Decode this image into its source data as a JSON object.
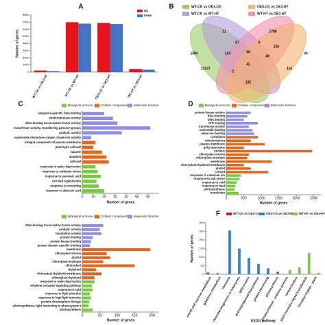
{
  "chart_data": [
    {
      "type": "bar",
      "label": "A",
      "ylabel": "Number of genes",
      "categories": [
        "WT-CK vs OE3-CK",
        "WT-CK vs WT-HT",
        "OE3-CK vs OE3-HT",
        "WT-HT vs OE3-HT"
      ],
      "series": [
        {
          "name": "Up",
          "color": "#e8141b",
          "values": [
            220,
            7000,
            6900,
            420
          ]
        },
        {
          "name": "down",
          "color": "#4472c4",
          "values": [
            120,
            6800,
            6750,
            330
          ]
        }
      ],
      "ylim": [
        0,
        8000
      ],
      "yticks": [
        0,
        1000,
        2000,
        3000,
        4000,
        5000,
        6000,
        7000,
        8000
      ]
    },
    {
      "type": "venn",
      "label": "B",
      "sets": [
        {
          "name": "WT-CK vs OE3-CK",
          "color": "#9ccc65"
        },
        {
          "name": "WT-CK vs WT-HT",
          "color": "#b39ddb"
        },
        {
          "name": "WT-HT vs OE3-HT",
          "color": "#f48fb1"
        },
        {
          "name": "OE3-CK vs OE3-HT",
          "color": "#f4b46a"
        }
      ],
      "regions": [
        1584,
        21,
        1788,
        34,
        67,
        9,
        226,
        154,
        98,
        48,
        11037,
        45,
        116,
        132,
        2
      ]
    },
    {
      "type": "barh",
      "label": "C",
      "xlabel": "Number of genes",
      "categories": [
        "sequence-specific DNA binding",
        "oxidoreductase activity",
        "DNA-binding transcription factor activity",
        "transferase activity, transferring glycosyl groups",
        "catalytic activity",
        "superoxide dismutase copper chaperone activity",
        "integral component of plasma membrane",
        "plant-type cell wall",
        "vacuole",
        "apoplast",
        "cell wall",
        "response to water deprivation",
        "response to oxidative stress",
        "response to jasmonic acid",
        "cell wall organization",
        "response to wounding",
        "response to abscisic acid"
      ],
      "series": [
        {
          "name": "Biological process",
          "color": "#7ac943",
          "values": [
            null,
            null,
            null,
            null,
            null,
            null,
            null,
            null,
            null,
            null,
            null,
            12,
            14,
            17,
            13,
            15,
            20
          ]
        },
        {
          "name": "Cellular component",
          "color": "#e8641b",
          "values": [
            null,
            null,
            null,
            null,
            null,
            null,
            12,
            10,
            18,
            22,
            24,
            null,
            null,
            null,
            null,
            null,
            null
          ]
        },
        {
          "name": "Molecular function",
          "color": "#8f8fe8",
          "values": [
            20,
            28,
            32,
            62,
            36,
            8,
            null,
            null,
            null,
            null,
            null,
            null,
            null,
            null,
            null,
            null,
            null
          ]
        }
      ],
      "xlim": [
        0,
        70
      ],
      "xticks": [
        0,
        10,
        20,
        30,
        40,
        50,
        60
      ]
    },
    {
      "type": "barh",
      "label": "D",
      "xlabel": "Number of genes",
      "categories": [
        "protein kinase activity",
        "RNA binding",
        "DNA binding",
        "ATP binding",
        "transferase activity",
        "nucleotide binding",
        "metal ion binding",
        "cytoplasm",
        "mitochondrion",
        "plasma membrane",
        "golgi apparatus",
        "nucleus",
        "chloroplast stroma",
        "chloroplast envelope",
        "membrane",
        "chloroplast thylakoid membrane",
        "plastid",
        "cytosol",
        "response to cadmium ion",
        "response to salt stress",
        "response to cold",
        "response to heat",
        "photosynthesis",
        "translation"
      ],
      "series": [
        {
          "name": "Biological process",
          "color": "#7ac943",
          "values": [
            null,
            null,
            null,
            null,
            null,
            null,
            null,
            null,
            null,
            null,
            null,
            null,
            null,
            null,
            null,
            null,
            null,
            null,
            420,
            380,
            300,
            260,
            240,
            350
          ]
        },
        {
          "name": "Cellular component",
          "color": "#e8641b",
          "values": [
            null,
            null,
            null,
            null,
            null,
            null,
            null,
            900,
            700,
            1100,
            500,
            2450,
            650,
            600,
            1300,
            500,
            700,
            1200,
            null,
            null,
            null,
            null,
            null,
            null
          ]
        },
        {
          "name": "Molecular function",
          "color": "#8f8fe8",
          "values": [
            700,
            600,
            500,
            900,
            650,
            750,
            800,
            null,
            null,
            null,
            null,
            null,
            null,
            null,
            null,
            null,
            null,
            null,
            null,
            null,
            null,
            null,
            null,
            null
          ]
        }
      ],
      "xlim": [
        0,
        2700
      ],
      "xticks": [
        0,
        500,
        1000,
        1500,
        2000,
        2500
      ]
    },
    {
      "type": "barh",
      "xlabel": "Number of genes",
      "categories": [
        "DNA-binding transcription factor activity",
        "catalytic activity",
        "translation activity",
        "protein binding",
        "protein kinase binding",
        "protein domain specific binding",
        "membrane",
        "chloroplast stroma",
        "plastid",
        "chloroplast envelope",
        "chloroplast",
        "thylakoid",
        "chloroplast thylakoid membrane",
        "chloroplast thylakoid",
        "response to water deprivation",
        "ethylene activated signaling pathway",
        "response to cold",
        "response to light stimulus",
        "response to high light intensity",
        "protein-chromophore linkage",
        "photosynthesis, light harvesting in photosystem I",
        "photosynthesis"
      ],
      "series": [
        {
          "name": "Biological process",
          "color": "#7ac943",
          "values": [
            null,
            null,
            null,
            null,
            null,
            null,
            null,
            null,
            null,
            null,
            null,
            null,
            null,
            null,
            35,
            28,
            30,
            22,
            25,
            20,
            18,
            30
          ]
        },
        {
          "name": "Cellular component",
          "color": "#e8641b",
          "values": [
            null,
            null,
            null,
            null,
            null,
            null,
            195,
            70,
            80,
            60,
            150,
            40,
            55,
            35,
            null,
            null,
            null,
            null,
            null,
            null,
            null,
            null
          ]
        },
        {
          "name": "Molecular function",
          "color": "#8f8fe8",
          "values": [
            60,
            50,
            55,
            30,
            25,
            22,
            null,
            null,
            null,
            null,
            null,
            null,
            null,
            null,
            null,
            null,
            null,
            null,
            null,
            null,
            null,
            null
          ]
        }
      ],
      "xlim": [
        0,
        220
      ],
      "xticks": [
        0,
        50,
        100,
        150,
        200
      ]
    },
    {
      "type": "bar",
      "label": "F",
      "xlabel": "KEGG pathway",
      "ylabel": "Number of genes",
      "categories": [
        "starch and sucrose metabolism",
        "galactose metabolism",
        "ribosome",
        "ribosome biogenesis in eukaryotes",
        "spliceosome",
        "phenylpropanoid biosynthesis",
        "protein processing",
        "photosynthesis",
        "photosynthesis - antenna proteins",
        "carbon fixation",
        "plant hormone signal transduction",
        "circadian rhythm - plant"
      ],
      "series": [
        {
          "name": "WT-CK vs OE3-CK",
          "color": "#e8141b",
          "values": [
            10,
            6,
            null,
            null,
            null,
            null,
            null,
            null,
            null,
            null,
            null,
            null
          ]
        },
        {
          "name": "OE3-CK vs OE3-HT",
          "color": "#2f7fd6",
          "values": [
            null,
            null,
            255,
            150,
            95,
            60,
            35,
            15,
            null,
            null,
            null,
            null
          ]
        },
        {
          "name": "WT-HT vs OE3-HT",
          "color": "#7ac943",
          "values": [
            null,
            null,
            null,
            null,
            null,
            null,
            null,
            null,
            25,
            40,
            125,
            8
          ]
        }
      ],
      "ylim": [
        0,
        300
      ],
      "yticks": [
        0,
        50,
        100,
        150,
        200,
        250,
        300
      ]
    }
  ]
}
